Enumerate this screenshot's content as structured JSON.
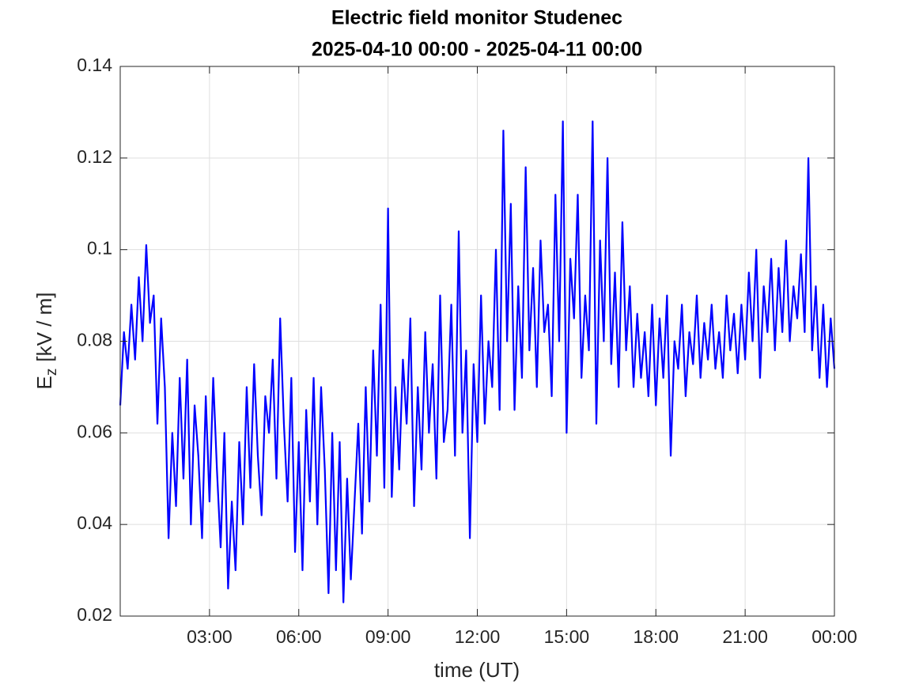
{
  "chart_data": {
    "type": "line",
    "title": "Electric field monitor Studenec",
    "subtitle": "2025-04-10 00:00 - 2025-04-11 00:00",
    "x_label": "time (UT)",
    "y_label": {
      "symbol": "E",
      "subscript": "z",
      "unit": "[kV / m]"
    },
    "color": "#0000ff",
    "grid": true,
    "xlim": [
      0,
      24
    ],
    "xticks": [
      {
        "value": 3,
        "label": "03:00"
      },
      {
        "value": 6,
        "label": "06:00"
      },
      {
        "value": 9,
        "label": "09:00"
      },
      {
        "value": 12,
        "label": "12:00"
      },
      {
        "value": 15,
        "label": "15:00"
      },
      {
        "value": 18,
        "label": "18:00"
      },
      {
        "value": 21,
        "label": "21:00"
      },
      {
        "value": 24,
        "label": "00:00"
      }
    ],
    "ylim": [
      0.02,
      0.14
    ],
    "yticks": [
      0.02,
      0.04,
      0.06,
      0.08,
      0.1,
      0.12,
      0.14
    ],
    "x": [
      0,
      0.125,
      0.25,
      0.375,
      0.5,
      0.625,
      0.75,
      0.875,
      1,
      1.125,
      1.25,
      1.375,
      1.5,
      1.625,
      1.75,
      1.875,
      2,
      2.125,
      2.25,
      2.375,
      2.5,
      2.625,
      2.75,
      2.875,
      3,
      3.125,
      3.25,
      3.375,
      3.5,
      3.625,
      3.75,
      3.875,
      4,
      4.125,
      4.25,
      4.375,
      4.5,
      4.625,
      4.75,
      4.875,
      5,
      5.125,
      5.25,
      5.375,
      5.5,
      5.625,
      5.75,
      5.875,
      6,
      6.125,
      6.25,
      6.375,
      6.5,
      6.625,
      6.75,
      6.875,
      7,
      7.125,
      7.25,
      7.375,
      7.5,
      7.625,
      7.75,
      7.875,
      8,
      8.125,
      8.25,
      8.375,
      8.5,
      8.625,
      8.75,
      8.875,
      9,
      9.125,
      9.25,
      9.375,
      9.5,
      9.625,
      9.75,
      9.875,
      10,
      10.125,
      10.25,
      10.375,
      10.5,
      10.625,
      10.75,
      10.875,
      11,
      11.125,
      11.25,
      11.375,
      11.5,
      11.625,
      11.75,
      11.875,
      12,
      12.125,
      12.25,
      12.375,
      12.5,
      12.625,
      12.75,
      12.875,
      13,
      13.125,
      13.25,
      13.375,
      13.5,
      13.625,
      13.75,
      13.875,
      14,
      14.125,
      14.25,
      14.375,
      14.5,
      14.625,
      14.75,
      14.875,
      15,
      15.125,
      15.25,
      15.375,
      15.5,
      15.625,
      15.75,
      15.875,
      16,
      16.125,
      16.25,
      16.375,
      16.5,
      16.625,
      16.75,
      16.875,
      17,
      17.125,
      17.25,
      17.375,
      17.5,
      17.625,
      17.75,
      17.875,
      18,
      18.125,
      18.25,
      18.375,
      18.5,
      18.625,
      18.75,
      18.875,
      19,
      19.125,
      19.25,
      19.375,
      19.5,
      19.625,
      19.75,
      19.875,
      20,
      20.125,
      20.25,
      20.375,
      20.5,
      20.625,
      20.75,
      20.875,
      21,
      21.125,
      21.25,
      21.375,
      21.5,
      21.625,
      21.75,
      21.875,
      22,
      22.125,
      22.25,
      22.375,
      22.5,
      22.625,
      22.75,
      22.875,
      23,
      23.125,
      23.25,
      23.375,
      23.5,
      23.625,
      23.75,
      23.875,
      24
    ],
    "values": [
      0.066,
      0.082,
      0.074,
      0.088,
      0.076,
      0.094,
      0.08,
      0.101,
      0.084,
      0.09,
      0.062,
      0.085,
      0.07,
      0.037,
      0.06,
      0.044,
      0.072,
      0.05,
      0.076,
      0.04,
      0.066,
      0.055,
      0.037,
      0.068,
      0.045,
      0.072,
      0.052,
      0.035,
      0.06,
      0.026,
      0.045,
      0.03,
      0.058,
      0.04,
      0.07,
      0.048,
      0.075,
      0.055,
      0.042,
      0.068,
      0.06,
      0.076,
      0.05,
      0.085,
      0.062,
      0.045,
      0.072,
      0.034,
      0.058,
      0.03,
      0.065,
      0.045,
      0.072,
      0.04,
      0.07,
      0.052,
      0.025,
      0.06,
      0.03,
      0.058,
      0.023,
      0.05,
      0.028,
      0.045,
      0.062,
      0.038,
      0.07,
      0.045,
      0.078,
      0.055,
      0.088,
      0.048,
      0.109,
      0.046,
      0.07,
      0.052,
      0.076,
      0.062,
      0.085,
      0.044,
      0.07,
      0.052,
      0.082,
      0.06,
      0.075,
      0.05,
      0.09,
      0.058,
      0.065,
      0.088,
      0.055,
      0.104,
      0.06,
      0.078,
      0.037,
      0.075,
      0.058,
      0.09,
      0.062,
      0.08,
      0.07,
      0.1,
      0.065,
      0.126,
      0.08,
      0.11,
      0.065,
      0.092,
      0.072,
      0.118,
      0.078,
      0.096,
      0.07,
      0.102,
      0.082,
      0.088,
      0.068,
      0.112,
      0.08,
      0.128,
      0.06,
      0.098,
      0.085,
      0.112,
      0.072,
      0.09,
      0.078,
      0.128,
      0.062,
      0.102,
      0.08,
      0.12,
      0.075,
      0.095,
      0.07,
      0.106,
      0.078,
      0.092,
      0.07,
      0.086,
      0.072,
      0.082,
      0.068,
      0.088,
      0.066,
      0.085,
      0.072,
      0.09,
      0.055,
      0.08,
      0.074,
      0.088,
      0.068,
      0.082,
      0.075,
      0.09,
      0.072,
      0.084,
      0.076,
      0.088,
      0.074,
      0.082,
      0.072,
      0.09,
      0.078,
      0.086,
      0.073,
      0.088,
      0.076,
      0.095,
      0.08,
      0.1,
      0.072,
      0.092,
      0.082,
      0.098,
      0.078,
      0.096,
      0.082,
      0.102,
      0.08,
      0.092,
      0.085,
      0.099,
      0.082,
      0.12,
      0.078,
      0.092,
      0.072,
      0.088,
      0.07,
      0.085,
      0.074
    ]
  }
}
